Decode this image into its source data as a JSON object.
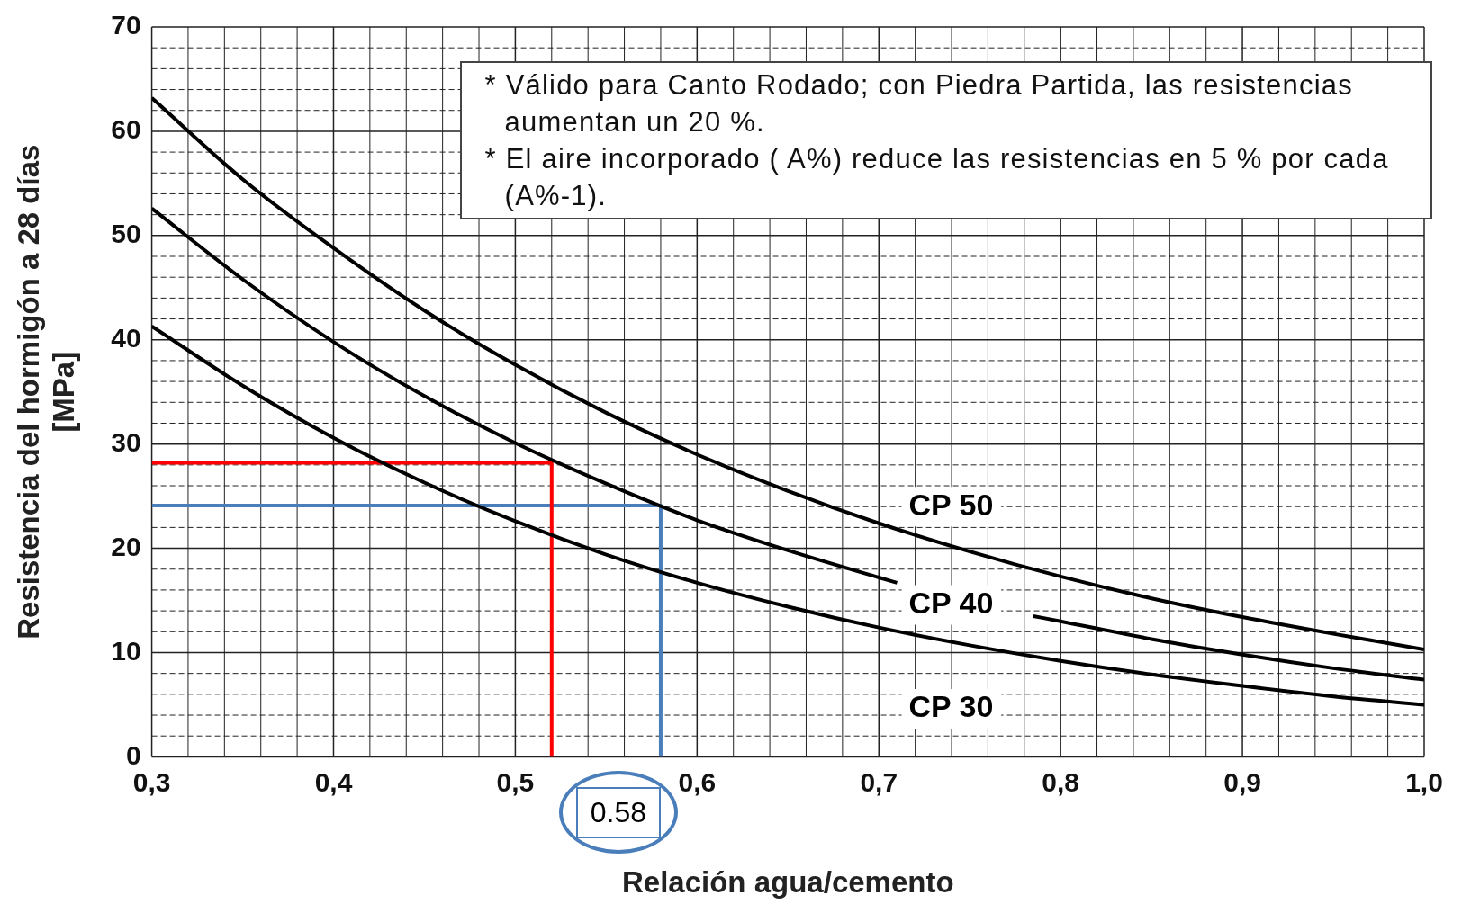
{
  "chart_data": {
    "type": "line",
    "xlabel": "Relación agua/cemento",
    "ylabel": "Resistencia del hormigón a 28 días\n[MPa]",
    "xlim": [
      0.3,
      1.0
    ],
    "xticks": [
      {
        "value": 0.3,
        "label": "0,3"
      },
      {
        "value": 0.32,
        "label": null
      },
      {
        "value": 0.34,
        "label": null
      },
      {
        "value": 0.36,
        "label": null
      },
      {
        "value": 0.38,
        "label": null
      },
      {
        "value": 0.4,
        "label": "0,4"
      },
      {
        "value": 0.42,
        "label": null
      },
      {
        "value": 0.44,
        "label": null
      },
      {
        "value": 0.46,
        "label": null
      },
      {
        "value": 0.48,
        "label": null
      },
      {
        "value": 0.5,
        "label": "0,5"
      },
      {
        "value": 0.52,
        "label": null
      },
      {
        "value": 0.54,
        "label": null
      },
      {
        "value": 0.56,
        "label": null
      },
      {
        "value": 0.58,
        "label": null
      },
      {
        "value": 0.6,
        "label": "0,6"
      },
      {
        "value": 0.62,
        "label": null
      },
      {
        "value": 0.64,
        "label": null
      },
      {
        "value": 0.66,
        "label": null
      },
      {
        "value": 0.68,
        "label": null
      },
      {
        "value": 0.7,
        "label": "0,7"
      },
      {
        "value": 0.72,
        "label": null
      },
      {
        "value": 0.74,
        "label": null
      },
      {
        "value": 0.76,
        "label": null
      },
      {
        "value": 0.78,
        "label": null
      },
      {
        "value": 0.8,
        "label": "0,8"
      },
      {
        "value": 0.82,
        "label": null
      },
      {
        "value": 0.84,
        "label": null
      },
      {
        "value": 0.86,
        "label": null
      },
      {
        "value": 0.88,
        "label": null
      },
      {
        "value": 0.9,
        "label": "0,9"
      },
      {
        "value": 0.92,
        "label": null
      },
      {
        "value": 0.94,
        "label": null
      },
      {
        "value": 0.96,
        "label": null
      },
      {
        "value": 0.98,
        "label": null
      },
      {
        "value": 1.0,
        "label": "1,0"
      }
    ],
    "ylim": [
      0,
      70
    ],
    "yticks": [
      0,
      {
        "value": 2,
        "label": null
      },
      {
        "value": 4,
        "label": null
      },
      {
        "value": 6,
        "label": null
      },
      {
        "value": 8,
        "label": null
      },
      10,
      {
        "value": 12,
        "label": null
      },
      {
        "value": 14,
        "label": null
      },
      {
        "value": 16,
        "label": null
      },
      {
        "value": 18,
        "label": null
      },
      20,
      {
        "value": 22,
        "label": null
      },
      {
        "value": 24,
        "label": null
      },
      {
        "value": 26,
        "label": null
      },
      {
        "value": 28,
        "label": null
      },
      30,
      {
        "value": 32,
        "label": null
      },
      {
        "value": 34,
        "label": null
      },
      {
        "value": 36,
        "label": null
      },
      {
        "value": 38,
        "label": null
      },
      40,
      {
        "value": 42,
        "label": null
      },
      {
        "value": 44,
        "label": null
      },
      {
        "value": 46,
        "label": null
      },
      {
        "value": 48,
        "label": null
      },
      50,
      {
        "value": 52,
        "label": null
      },
      {
        "value": 54,
        "label": null
      },
      {
        "value": 56,
        "label": null
      },
      {
        "value": 58,
        "label": null
      },
      60,
      {
        "value": 62,
        "label": null
      },
      {
        "value": 64,
        "label": null
      },
      {
        "value": 66,
        "label": null
      },
      {
        "value": 68,
        "label": null
      },
      70
    ],
    "grid": true,
    "legend": false,
    "marker": "none",
    "line_style": "solid",
    "annotations": [
      "* Válido para Canto Rodado;  con Piedra Partida, las resistencias aumentan un 20 %.",
      "* El aire incorporado ( A%) reduce las resistencias en 5 % por cada (A%-1).",
      "0.58"
    ],
    "series": [
      {
        "name": "CP 50",
        "color": "#000000",
        "x": [
          0.3,
          0.35,
          0.4,
          0.45,
          0.5,
          0.55,
          0.6,
          0.65,
          0.7,
          0.75,
          0.8,
          0.85,
          0.9,
          0.95,
          1.0
        ],
        "values": [
          63.2,
          55.4,
          48.8,
          42.8,
          37.6,
          33.0,
          29.0,
          25.5,
          22.4,
          19.7,
          17.3,
          15.2,
          13.4,
          11.8,
          10.3
        ]
      },
      {
        "name": "CP 40",
        "color": "#000000",
        "x": [
          0.3,
          0.35,
          0.4,
          0.45,
          0.5,
          0.55,
          0.6,
          0.65,
          0.7,
          0.71,
          0.75,
          0.785,
          0.8,
          0.85,
          0.9,
          0.95,
          1.0
        ],
        "values": [
          52.6,
          45.8,
          39.8,
          34.6,
          30.1,
          26.2,
          22.7,
          19.8,
          17.2,
          16.7,
          null,
          13.5,
          13.0,
          11.3,
          9.8,
          8.5,
          7.4
        ]
      },
      {
        "name": "CP 30",
        "color": "#000000",
        "x": [
          0.3,
          0.35,
          0.4,
          0.45,
          0.5,
          0.55,
          0.6,
          0.65,
          0.7,
          0.75,
          0.8,
          0.85,
          0.9,
          0.95,
          1.0
        ],
        "values": [
          41.3,
          35.6,
          30.6,
          26.3,
          22.6,
          19.4,
          16.7,
          14.4,
          12.4,
          10.7,
          9.2,
          7.9,
          6.8,
          5.8,
          5.0
        ]
      },
      {
        "color": "#ff0000",
        "x": [
          0.3,
          0.52,
          0.52
        ],
        "values": [
          28.2,
          28.2,
          0
        ]
      },
      {
        "color": "#4a7ebb",
        "x": [
          0.3,
          0.58,
          0.58
        ],
        "values": [
          24.1,
          24.1,
          0
        ]
      }
    ]
  }
}
